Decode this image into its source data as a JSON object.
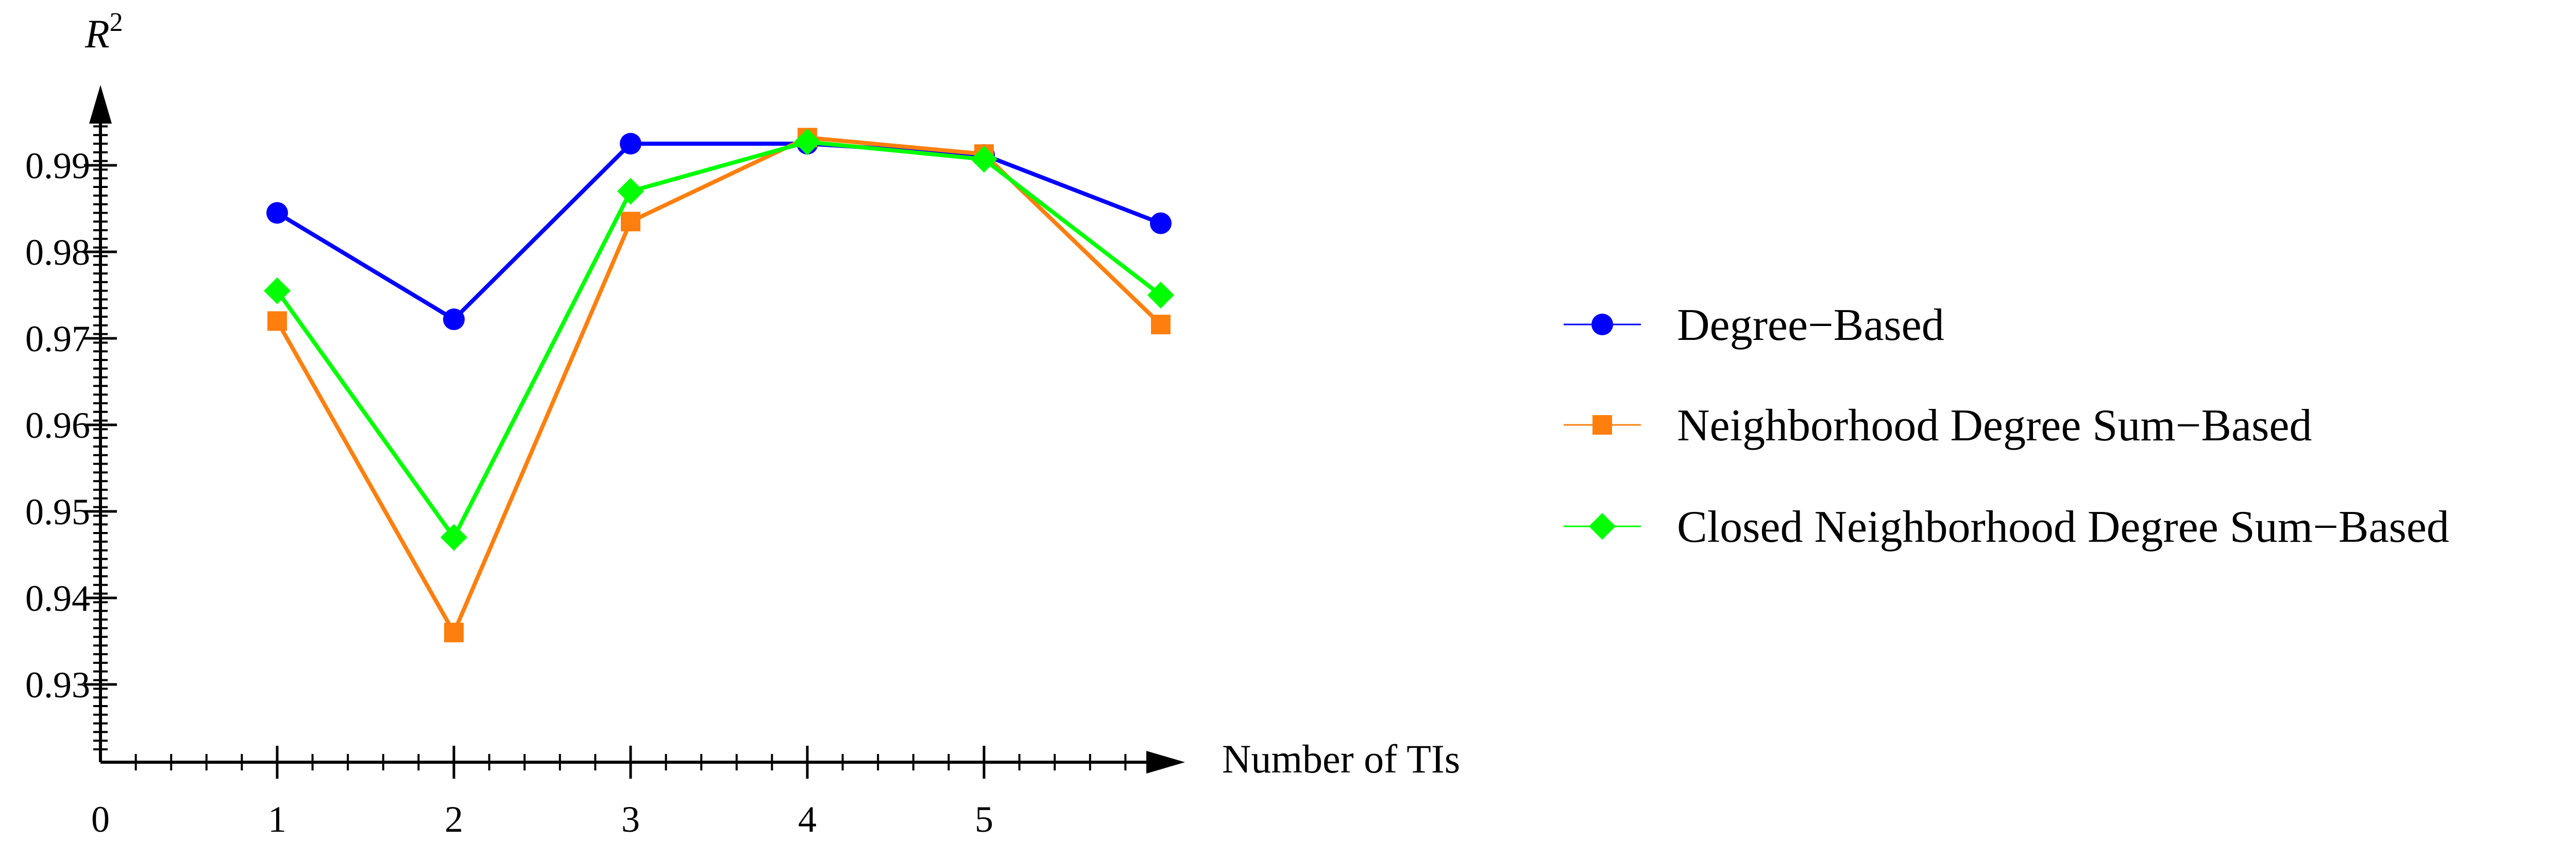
{
  "chart_data": {
    "type": "line",
    "title": "",
    "xlabel": "Number of TIs",
    "ylabel": "R",
    "ylabel_superscript": "2",
    "xlim": [
      0,
      6
    ],
    "ylim": [
      0.92,
      1.0
    ],
    "x_ticks": [
      0,
      1,
      2,
      3,
      4,
      5
    ],
    "x_tick_labels": [
      "0",
      "1",
      "2",
      "3",
      "4",
      "5"
    ],
    "y_ticks": [
      0.93,
      0.94,
      0.95,
      0.96,
      0.97,
      0.98,
      0.99
    ],
    "y_tick_labels": [
      "0.93",
      "0.94",
      "0.95",
      "0.96",
      "0.97",
      "0.98",
      "0.99"
    ],
    "grid": false,
    "legend_position": "right",
    "x": [
      1,
      2,
      3,
      4,
      5,
      6
    ],
    "series": [
      {
        "name": "Degree−Based",
        "marker": "circle",
        "color": "#0000ff",
        "values": [
          0.9845,
          0.9722,
          0.9925,
          0.9925,
          0.9912,
          0.9833
        ]
      },
      {
        "name": "Neighborhood Degree Sum−Based",
        "marker": "square",
        "color": "#ff7f0e",
        "values": [
          0.972,
          0.936,
          0.9835,
          0.9932,
          0.9913,
          0.9716
        ]
      },
      {
        "name": "Closed Neighborhood Degree Sum−Based",
        "marker": "diamond",
        "color": "#00ff00",
        "values": [
          0.9755,
          0.947,
          0.987,
          0.9927,
          0.9907,
          0.975
        ]
      }
    ]
  }
}
